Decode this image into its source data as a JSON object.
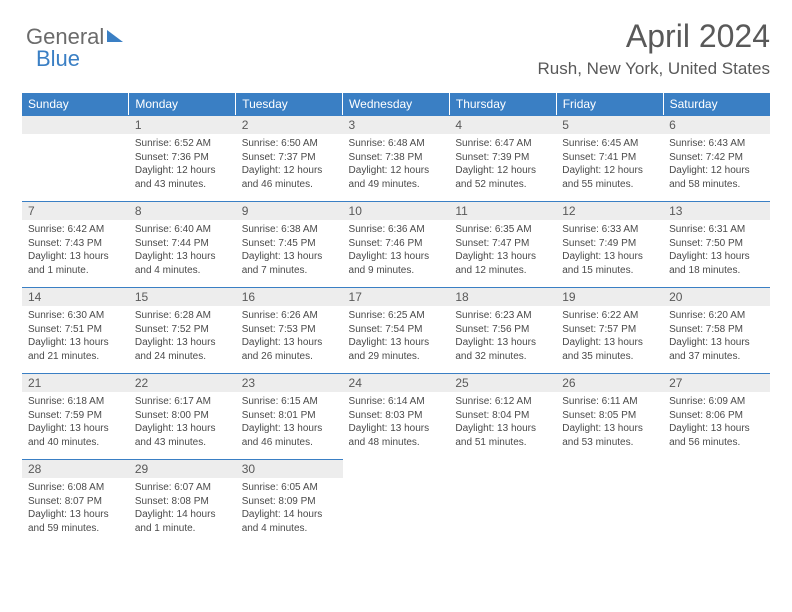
{
  "brand": {
    "part1": "General",
    "part2": "Blue"
  },
  "title": "April 2024",
  "location": "Rush, New York, United States",
  "colors": {
    "accent": "#3a7fc4",
    "header_text": "#595959",
    "daynum_bg": "#ededed",
    "body_text": "#4a4a4a"
  },
  "weekdays": [
    "Sunday",
    "Monday",
    "Tuesday",
    "Wednesday",
    "Thursday",
    "Friday",
    "Saturday"
  ],
  "layout": {
    "first_weekday_index": 1,
    "days_in_month": 30
  },
  "days": {
    "1": {
      "sunrise": "6:52 AM",
      "sunset": "7:36 PM",
      "daylight": "12 hours and 43 minutes."
    },
    "2": {
      "sunrise": "6:50 AM",
      "sunset": "7:37 PM",
      "daylight": "12 hours and 46 minutes."
    },
    "3": {
      "sunrise": "6:48 AM",
      "sunset": "7:38 PM",
      "daylight": "12 hours and 49 minutes."
    },
    "4": {
      "sunrise": "6:47 AM",
      "sunset": "7:39 PM",
      "daylight": "12 hours and 52 minutes."
    },
    "5": {
      "sunrise": "6:45 AM",
      "sunset": "7:41 PM",
      "daylight": "12 hours and 55 minutes."
    },
    "6": {
      "sunrise": "6:43 AM",
      "sunset": "7:42 PM",
      "daylight": "12 hours and 58 minutes."
    },
    "7": {
      "sunrise": "6:42 AM",
      "sunset": "7:43 PM",
      "daylight": "13 hours and 1 minute."
    },
    "8": {
      "sunrise": "6:40 AM",
      "sunset": "7:44 PM",
      "daylight": "13 hours and 4 minutes."
    },
    "9": {
      "sunrise": "6:38 AM",
      "sunset": "7:45 PM",
      "daylight": "13 hours and 7 minutes."
    },
    "10": {
      "sunrise": "6:36 AM",
      "sunset": "7:46 PM",
      "daylight": "13 hours and 9 minutes."
    },
    "11": {
      "sunrise": "6:35 AM",
      "sunset": "7:47 PM",
      "daylight": "13 hours and 12 minutes."
    },
    "12": {
      "sunrise": "6:33 AM",
      "sunset": "7:49 PM",
      "daylight": "13 hours and 15 minutes."
    },
    "13": {
      "sunrise": "6:31 AM",
      "sunset": "7:50 PM",
      "daylight": "13 hours and 18 minutes."
    },
    "14": {
      "sunrise": "6:30 AM",
      "sunset": "7:51 PM",
      "daylight": "13 hours and 21 minutes."
    },
    "15": {
      "sunrise": "6:28 AM",
      "sunset": "7:52 PM",
      "daylight": "13 hours and 24 minutes."
    },
    "16": {
      "sunrise": "6:26 AM",
      "sunset": "7:53 PM",
      "daylight": "13 hours and 26 minutes."
    },
    "17": {
      "sunrise": "6:25 AM",
      "sunset": "7:54 PM",
      "daylight": "13 hours and 29 minutes."
    },
    "18": {
      "sunrise": "6:23 AM",
      "sunset": "7:56 PM",
      "daylight": "13 hours and 32 minutes."
    },
    "19": {
      "sunrise": "6:22 AM",
      "sunset": "7:57 PM",
      "daylight": "13 hours and 35 minutes."
    },
    "20": {
      "sunrise": "6:20 AM",
      "sunset": "7:58 PM",
      "daylight": "13 hours and 37 minutes."
    },
    "21": {
      "sunrise": "6:18 AM",
      "sunset": "7:59 PM",
      "daylight": "13 hours and 40 minutes."
    },
    "22": {
      "sunrise": "6:17 AM",
      "sunset": "8:00 PM",
      "daylight": "13 hours and 43 minutes."
    },
    "23": {
      "sunrise": "6:15 AM",
      "sunset": "8:01 PM",
      "daylight": "13 hours and 46 minutes."
    },
    "24": {
      "sunrise": "6:14 AM",
      "sunset": "8:03 PM",
      "daylight": "13 hours and 48 minutes."
    },
    "25": {
      "sunrise": "6:12 AM",
      "sunset": "8:04 PM",
      "daylight": "13 hours and 51 minutes."
    },
    "26": {
      "sunrise": "6:11 AM",
      "sunset": "8:05 PM",
      "daylight": "13 hours and 53 minutes."
    },
    "27": {
      "sunrise": "6:09 AM",
      "sunset": "8:06 PM",
      "daylight": "13 hours and 56 minutes."
    },
    "28": {
      "sunrise": "6:08 AM",
      "sunset": "8:07 PM",
      "daylight": "13 hours and 59 minutes."
    },
    "29": {
      "sunrise": "6:07 AM",
      "sunset": "8:08 PM",
      "daylight": "14 hours and 1 minute."
    },
    "30": {
      "sunrise": "6:05 AM",
      "sunset": "8:09 PM",
      "daylight": "14 hours and 4 minutes."
    }
  },
  "labels": {
    "sunrise": "Sunrise: ",
    "sunset": "Sunset: ",
    "daylight": "Daylight: "
  }
}
